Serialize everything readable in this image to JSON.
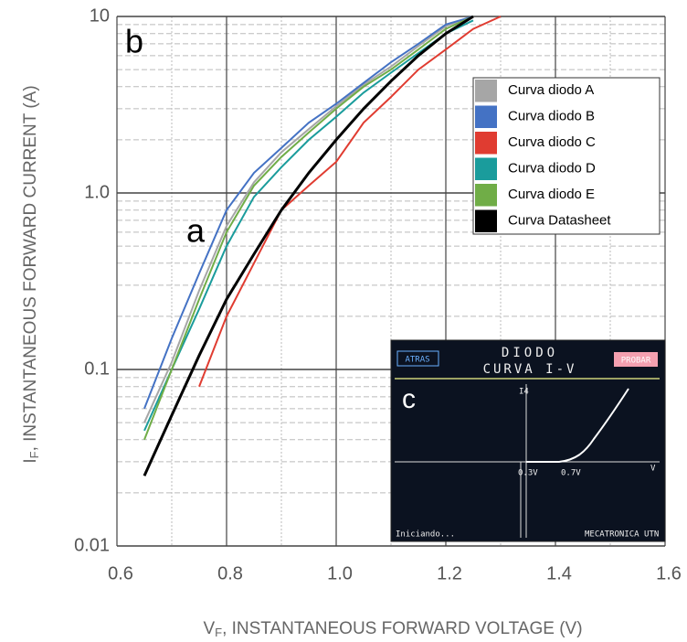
{
  "chart_data": {
    "type": "line",
    "yscale": "log",
    "grid": true,
    "minor_grid": true,
    "xlabel": {
      "symbol": "V",
      "subscript": "F",
      "text": ", INSTANTANEOUS FORWARD VOLTAGE (V)"
    },
    "ylabel": {
      "symbol": "I",
      "subscript": "F",
      "text": ", INSTANTANEOUS FORWARD CURRENT (A)"
    },
    "xlim": [
      0.6,
      1.6
    ],
    "xticks": [
      0.6,
      0.8,
      {
        "value": 1.0,
        "label": "1.0"
      },
      1.2,
      1.4,
      1.6
    ],
    "ylim": [
      0.01,
      10
    ],
    "yticks": [
      0.01,
      0.1,
      {
        "value": 1,
        "label": "1.0"
      },
      10
    ],
    "legend": "upper right",
    "x": [
      0.65,
      0.7,
      0.75,
      0.8,
      0.85,
      0.9,
      0.95,
      1.0,
      1.05,
      1.1,
      1.15,
      1.2,
      1.25,
      1.3
    ],
    "series": [
      {
        "name": "Curva diodo A",
        "color": "#a6a6a6",
        "values": [
          0.05,
          0.11,
          0.28,
          0.65,
          1.15,
          1.7,
          2.3,
          3.1,
          4.1,
          5.2,
          6.8,
          8.8,
          10,
          null
        ]
      },
      {
        "name": "Curva diodo B",
        "color": "#4472c4",
        "values": [
          0.06,
          0.15,
          0.35,
          0.8,
          1.3,
          1.8,
          2.5,
          3.2,
          4.2,
          5.5,
          7,
          9,
          10,
          null
        ]
      },
      {
        "name": "Curva diodo C",
        "color": "#e03c31",
        "values": [
          null,
          null,
          0.08,
          0.2,
          0.4,
          0.8,
          1.1,
          1.5,
          2.5,
          3.5,
          5,
          6.5,
          8.5,
          10
        ]
      },
      {
        "name": "Curva diodo D",
        "color": "#1a9c9c",
        "values": [
          0.045,
          0.1,
          0.22,
          0.5,
          0.95,
          1.4,
          2,
          2.7,
          3.7,
          4.8,
          6.2,
          8,
          9.5,
          null
        ]
      },
      {
        "name": "Curva diodo E",
        "color": "#70ad47",
        "values": [
          0.04,
          0.1,
          0.25,
          0.6,
          1.1,
          1.6,
          2.2,
          3,
          4,
          5,
          6.5,
          8.5,
          10,
          null
        ]
      },
      {
        "name": "Curva Datasheet",
        "color": "#000000",
        "values": [
          0.025,
          0.055,
          0.12,
          0.25,
          0.45,
          0.8,
          1.3,
          2.0,
          3.0,
          4.3,
          6,
          8,
          10,
          null
        ]
      }
    ],
    "annotations": [
      "a",
      "b"
    ],
    "inset": {
      "label": "c",
      "back_button": "ATRAS",
      "title": "DIODO",
      "subtitle": "CURVA I-V",
      "probe_button": "PROBAR",
      "current_axis": "I4",
      "voltage_axis": "V",
      "mark_low": "0.3V",
      "mark_knee": "0.7V",
      "status": "Iniciando...",
      "footer": "MECATRONICA UTN"
    }
  }
}
